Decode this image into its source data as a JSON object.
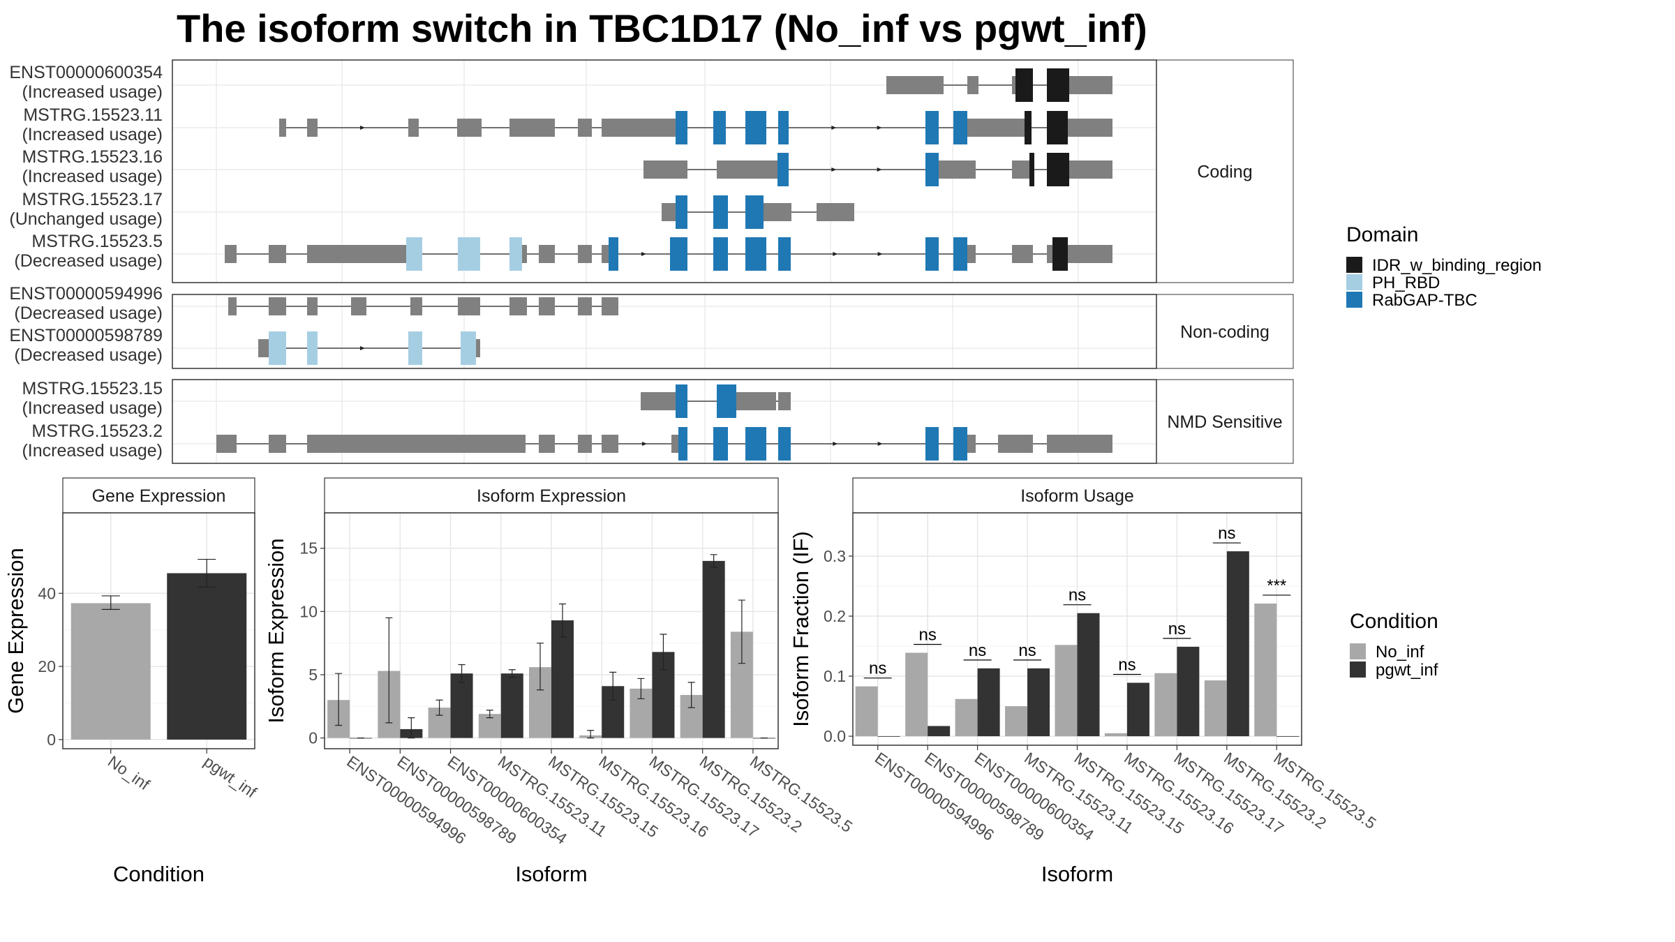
{
  "title": "The isoform switch in TBC1D17 (No_inf vs pgwt_inf)",
  "colors": {
    "utr": "#808080",
    "idr": "#1a1a1a",
    "ph": "#a6cee3",
    "rabgap": "#1f78b4",
    "no_inf": "#a8a8a8",
    "pgwt_inf": "#333333"
  },
  "structure": {
    "groups": [
      {
        "label": "Coding",
        "transcripts": [
          {
            "id": "ENST00000600354",
            "usage": "(Increased usage)",
            "segments": [
              [
                1270,
                1352,
                "utr"
              ],
              [
                1386,
                1402,
                "utr"
              ],
              [
                1450,
                1455,
                "utr"
              ],
              [
                1455,
                1480,
                "idr"
              ],
              [
                1500,
                1520,
                "idr"
              ],
              [
                1520,
                1532,
                "idr"
              ],
              [
                1532,
                1594,
                "utr"
              ]
            ]
          },
          {
            "id": "MSTRG.15523.11",
            "usage": "(Increased usage)",
            "segments": [
              [
                400,
                410,
                "utr"
              ],
              [
                440,
                455,
                "utr"
              ],
              [
                585,
                600,
                "utr"
              ],
              [
                655,
                690,
                "utr"
              ],
              [
                730,
                795,
                "utr"
              ],
              [
                828,
                848,
                "utr"
              ],
              [
                862,
                968,
                "utr"
              ],
              [
                968,
                985,
                "rabgap"
              ],
              [
                1022,
                1040,
                "rabgap"
              ],
              [
                1068,
                1098,
                "rabgap"
              ],
              [
                1115,
                1130,
                "rabgap"
              ],
              [
                1326,
                1345,
                "rabgap"
              ],
              [
                1366,
                1386,
                "rabgap"
              ],
              [
                1386,
                1468,
                "utr"
              ],
              [
                1468,
                1478,
                "idr"
              ],
              [
                1500,
                1530,
                "idr"
              ],
              [
                1530,
                1594,
                "utr"
              ]
            ]
          },
          {
            "id": "MSTRG.15523.16",
            "usage": "(Increased usage)",
            "segments": [
              [
                922,
                985,
                "utr"
              ],
              [
                1027,
                1076,
                "utr"
              ],
              [
                1076,
                1114,
                "utr"
              ],
              [
                1114,
                1130,
                "rabgap"
              ],
              [
                1326,
                1345,
                "rabgap"
              ],
              [
                1345,
                1398,
                "utr"
              ],
              [
                1450,
                1475,
                "utr"
              ],
              [
                1475,
                1482,
                "idr"
              ],
              [
                1500,
                1532,
                "idr"
              ],
              [
                1532,
                1594,
                "utr"
              ]
            ]
          },
          {
            "id": "MSTRG.15523.17",
            "usage": "(Unchanged usage)",
            "segments": [
              [
                948,
                968,
                "utr"
              ],
              [
                968,
                985,
                "rabgap"
              ],
              [
                1022,
                1043,
                "rabgap"
              ],
              [
                1068,
                1094,
                "rabgap"
              ],
              [
                1094,
                1134,
                "utr"
              ],
              [
                1170,
                1183,
                "utr"
              ],
              [
                1183,
                1224,
                "utr"
              ]
            ]
          },
          {
            "id": "MSTRG.15523.5",
            "usage": "(Decreased usage)",
            "segments": [
              [
                322,
                339,
                "utr"
              ],
              [
                385,
                410,
                "utr"
              ],
              [
                440,
                573,
                "utr"
              ],
              [
                573,
                582,
                "utr"
              ],
              [
                582,
                605,
                "ph"
              ],
              [
                656,
                688,
                "ph"
              ],
              [
                730,
                748,
                "ph"
              ],
              [
                748,
                755,
                "utr"
              ],
              [
                772,
                795,
                "utr"
              ],
              [
                828,
                848,
                "utr"
              ],
              [
                862,
                872,
                "utr"
              ],
              [
                872,
                886,
                "rabgap"
              ],
              [
                960,
                985,
                "rabgap"
              ],
              [
                1022,
                1043,
                "rabgap"
              ],
              [
                1068,
                1098,
                "rabgap"
              ],
              [
                1115,
                1133,
                "rabgap"
              ],
              [
                1326,
                1345,
                "rabgap"
              ],
              [
                1366,
                1386,
                "rabgap"
              ],
              [
                1386,
                1398,
                "utr"
              ],
              [
                1450,
                1480,
                "utr"
              ],
              [
                1500,
                1508,
                "utr"
              ],
              [
                1508,
                1530,
                "idr"
              ],
              [
                1530,
                1594,
                "utr"
              ]
            ]
          }
        ]
      },
      {
        "label": "Non-coding",
        "transcripts": [
          {
            "id": "ENST00000594996",
            "usage": "(Decreased usage)",
            "segments": [
              [
                327,
                339,
                "utr"
              ],
              [
                385,
                410,
                "utr"
              ],
              [
                440,
                455,
                "utr"
              ],
              [
                503,
                525,
                "utr"
              ],
              [
                588,
                605,
                "utr"
              ],
              [
                656,
                688,
                "utr"
              ],
              [
                730,
                755,
                "utr"
              ],
              [
                772,
                795,
                "utr"
              ],
              [
                828,
                848,
                "utr"
              ],
              [
                862,
                886,
                "utr"
              ]
            ]
          },
          {
            "id": "ENST00000598789",
            "usage": "(Decreased usage)",
            "segments": [
              [
                370,
                385,
                "utr"
              ],
              [
                385,
                410,
                "ph"
              ],
              [
                440,
                455,
                "ph"
              ],
              [
                585,
                605,
                "ph"
              ],
              [
                660,
                682,
                "ph"
              ],
              [
                682,
                688,
                "utr"
              ]
            ]
          }
        ]
      },
      {
        "label": "NMD Sensitive",
        "transcripts": [
          {
            "id": "MSTRG.15523.15",
            "usage": "(Increased usage)",
            "segments": [
              [
                918,
                968,
                "utr"
              ],
              [
                968,
                985,
                "rabgap"
              ],
              [
                1027,
                1055,
                "rabgap"
              ],
              [
                1055,
                1096,
                "utr"
              ],
              [
                1096,
                1112,
                "utr"
              ],
              [
                1115,
                1133,
                "utr"
              ]
            ]
          },
          {
            "id": "MSTRG.15523.2",
            "usage": "(Increased usage)",
            "segments": [
              [
                310,
                339,
                "utr"
              ],
              [
                385,
                410,
                "utr"
              ],
              [
                440,
                753,
                "utr"
              ],
              [
                772,
                795,
                "utr"
              ],
              [
                828,
                848,
                "utr"
              ],
              [
                862,
                886,
                "utr"
              ],
              [
                962,
                972,
                "utr"
              ],
              [
                972,
                985,
                "rabgap"
              ],
              [
                1022,
                1043,
                "rabgap"
              ],
              [
                1068,
                1098,
                "rabgap"
              ],
              [
                1115,
                1133,
                "rabgap"
              ],
              [
                1326,
                1345,
                "rabgap"
              ],
              [
                1366,
                1386,
                "rabgap"
              ],
              [
                1386,
                1398,
                "utr"
              ],
              [
                1430,
                1440,
                "utr"
              ],
              [
                1440,
                1480,
                "utr"
              ],
              [
                1500,
                1594,
                "utr"
              ]
            ]
          }
        ]
      }
    ]
  },
  "chart_data": [
    {
      "type": "bar",
      "title": "Gene Expression",
      "xlabel": "Condition",
      "ylabel": "Gene Expression",
      "categories": [
        "No_inf",
        "pgwt_inf"
      ],
      "values": [
        37.3,
        45.5
      ],
      "errors": [
        [
          35.6,
          39.3
        ],
        [
          41.7,
          49.3
        ]
      ],
      "ylim": [
        -2.5,
        62
      ],
      "yticks": [
        0,
        20,
        40
      ]
    },
    {
      "type": "bar",
      "title": "Isoform Expression",
      "xlabel": "Isoform",
      "ylabel": "Isoform Expression",
      "categories": [
        "ENST00000594996",
        "ENST00000598789",
        "ENST00000600354",
        "MSTRG.15523.11",
        "MSTRG.15523.15",
        "MSTRG.15523.16",
        "MSTRG.15523.17",
        "MSTRG.15523.2",
        "MSTRG.15523.5"
      ],
      "series": [
        {
          "name": "No_inf",
          "values": [
            3.0,
            5.3,
            2.4,
            1.9,
            5.6,
            0.2,
            3.9,
            3.4,
            8.4
          ],
          "errors": [
            [
              1.0,
              5.1
            ],
            [
              1.2,
              9.5
            ],
            [
              1.8,
              3.0
            ],
            [
              1.6,
              2.2
            ],
            [
              3.8,
              7.5
            ],
            [
              0.0,
              0.6
            ],
            [
              3.1,
              4.7
            ],
            [
              2.4,
              4.4
            ],
            [
              5.9,
              10.9
            ]
          ]
        },
        {
          "name": "pgwt_inf",
          "values": [
            0.0,
            0.7,
            5.1,
            5.1,
            9.3,
            4.1,
            6.8,
            14.0,
            0.0
          ],
          "errors": [
            [
              0.0,
              0.0
            ],
            [
              0.0,
              1.6
            ],
            [
              4.4,
              5.8
            ],
            [
              4.8,
              5.4
            ],
            [
              8.0,
              10.6
            ],
            [
              3.0,
              5.2
            ],
            [
              5.4,
              8.2
            ],
            [
              13.5,
              14.5
            ],
            [
              0.0,
              0.0
            ]
          ]
        }
      ],
      "ylim": [
        -0.85,
        17.8
      ],
      "yticks": [
        0,
        5,
        10,
        15
      ]
    },
    {
      "type": "bar",
      "title": "Isoform Usage",
      "xlabel": "Isoform",
      "ylabel": "Isoform Fraction (IF)",
      "categories": [
        "ENST00000594996",
        "ENST00000598789",
        "ENST00000600354",
        "MSTRG.15523.11",
        "MSTRG.15523.15",
        "MSTRG.15523.16",
        "MSTRG.15523.17",
        "MSTRG.15523.2",
        "MSTRG.15523.5"
      ],
      "series": [
        {
          "name": "No_inf",
          "values": [
            0.083,
            0.139,
            0.062,
            0.05,
            0.152,
            0.005,
            0.105,
            0.093,
            0.221
          ]
        },
        {
          "name": "pgwt_inf",
          "values": [
            0.0,
            0.017,
            0.113,
            0.113,
            0.205,
            0.089,
            0.149,
            0.308,
            0.0
          ]
        }
      ],
      "significance": [
        "ns",
        "ns",
        "ns",
        "ns",
        "ns",
        "ns",
        "ns",
        "ns",
        "***"
      ],
      "ylim": [
        -0.015,
        0.372
      ],
      "yticks": [
        0.0,
        0.1,
        0.2,
        0.3
      ],
      "ytick_labels": [
        "0.0",
        "0.1",
        "0.2",
        "0.3"
      ]
    }
  ],
  "legend_domain": {
    "title": "Domain",
    "items": [
      {
        "label": "IDR_w_binding_region",
        "color": "#1a1a1a"
      },
      {
        "label": "PH_RBD",
        "color": "#a6cee3"
      },
      {
        "label": "RabGAP-TBC",
        "color": "#1f78b4"
      }
    ]
  },
  "legend_condition": {
    "title": "Condition",
    "items": [
      {
        "label": "No_inf",
        "color": "#a8a8a8"
      },
      {
        "label": "pgwt_inf",
        "color": "#333333"
      }
    ]
  }
}
